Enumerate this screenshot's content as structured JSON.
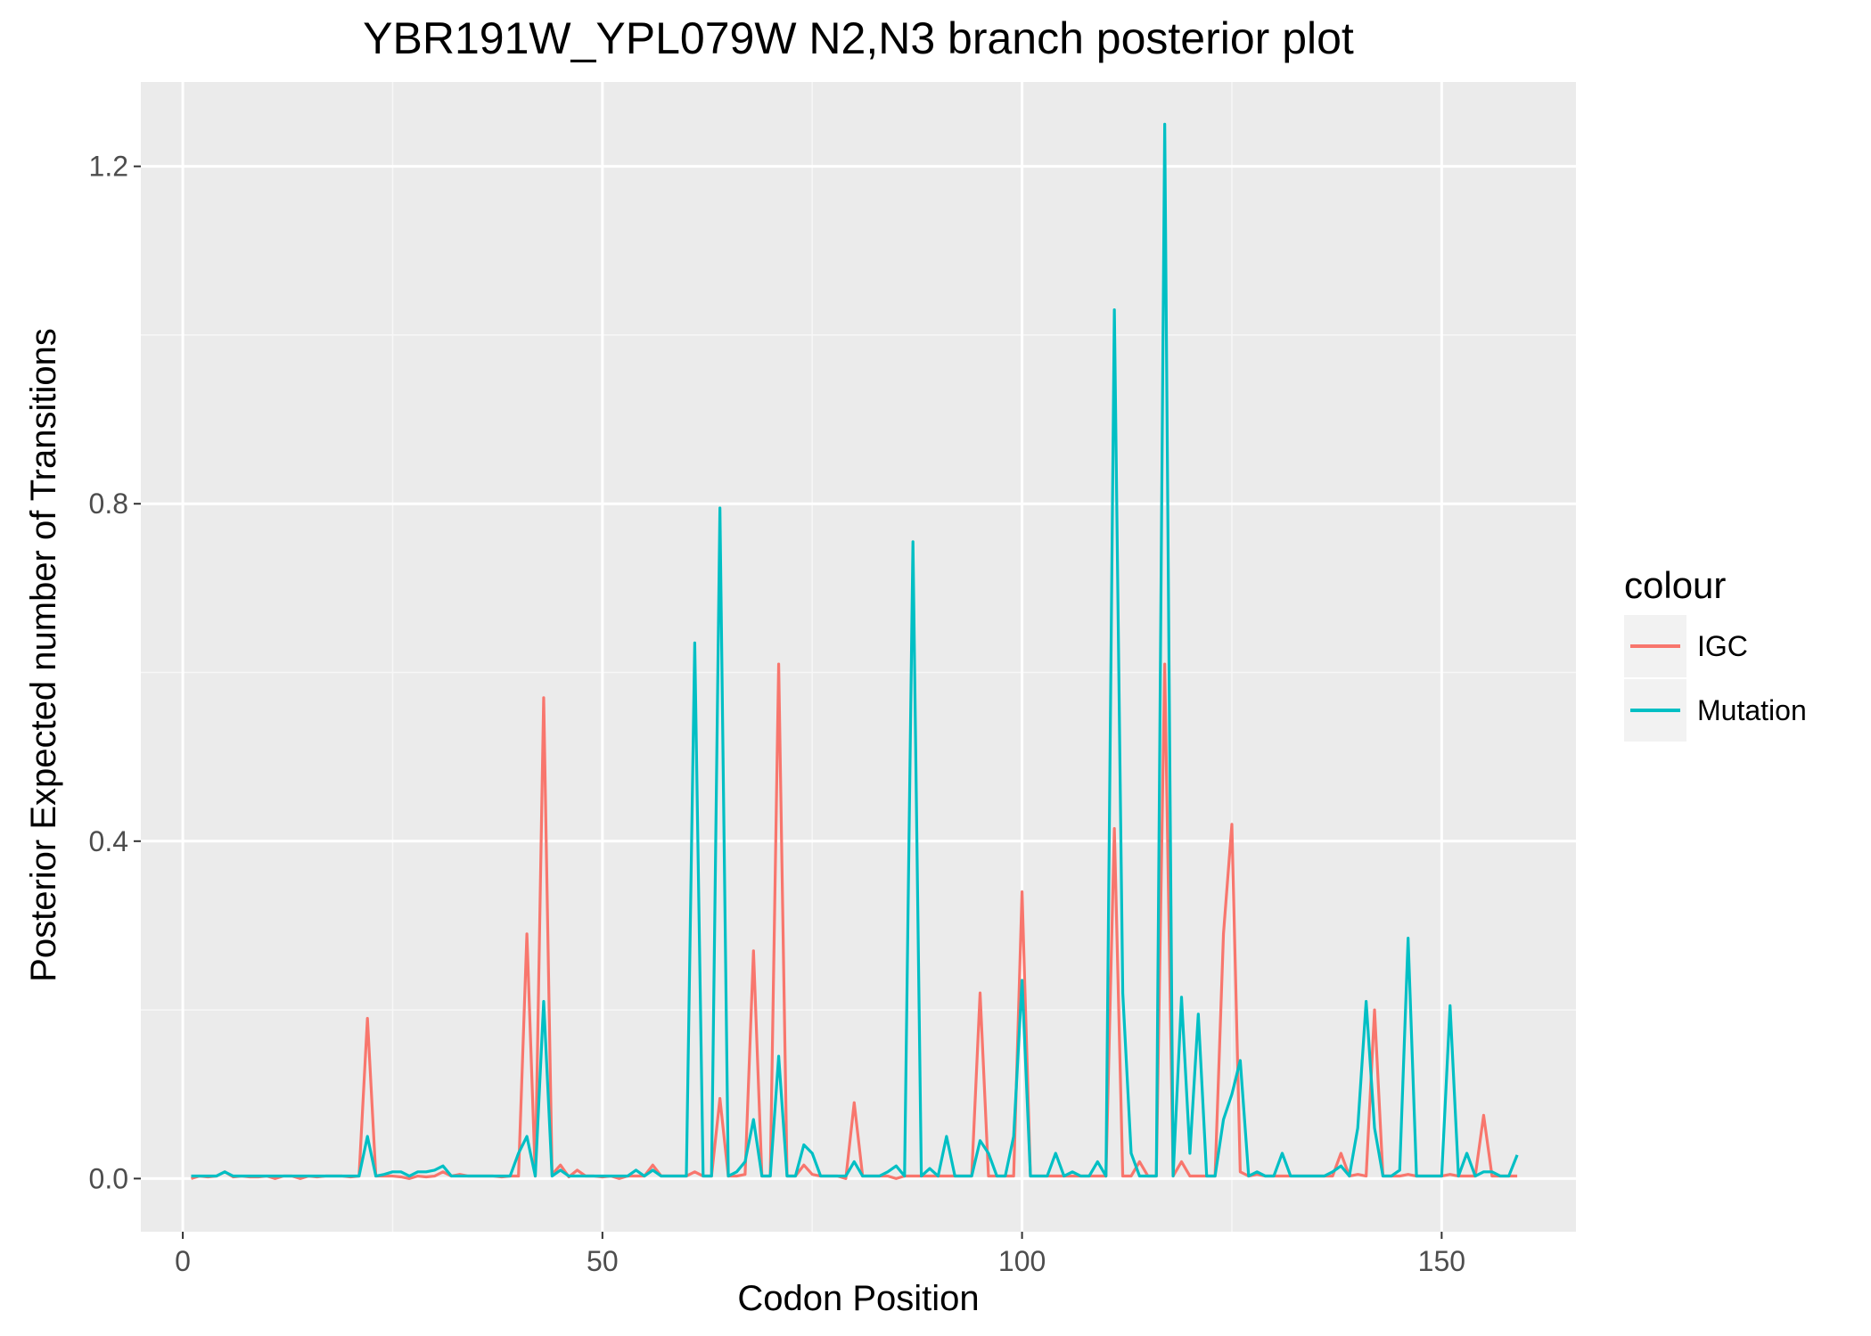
{
  "chart_data": {
    "type": "line",
    "title": "YBR191W_YPL079W N2,N3 branch posterior plot",
    "xlabel": "Codon Position",
    "ylabel": "Posterior Expected number of Transitions",
    "xlim": [
      -5,
      166
    ],
    "ylim": [
      -0.063,
      1.3
    ],
    "x_ticks": [
      0,
      50,
      100,
      150
    ],
    "x_tick_labels": [
      "0",
      "50",
      "100",
      "150"
    ],
    "y_ticks": [
      0.0,
      0.4,
      0.8,
      1.2
    ],
    "y_tick_labels": [
      "0.0",
      "0.4",
      "0.8",
      "1.2"
    ],
    "grid": true,
    "legend": {
      "title": "colour",
      "position": "right"
    },
    "series": [
      {
        "name": "IGC",
        "color": "#F8766D",
        "points": [
          [
            1,
            0.0
          ],
          [
            2,
            0.003
          ],
          [
            3,
            0.002
          ],
          [
            4,
            0.003
          ],
          [
            5,
            0.008
          ],
          [
            6,
            0.002
          ],
          [
            7,
            0.003
          ],
          [
            8,
            0.002
          ],
          [
            9,
            0.002
          ],
          [
            10,
            0.003
          ],
          [
            11,
            0.0
          ],
          [
            12,
            0.003
          ],
          [
            13,
            0.003
          ],
          [
            14,
            0.0
          ],
          [
            15,
            0.003
          ],
          [
            16,
            0.002
          ],
          [
            17,
            0.003
          ],
          [
            18,
            0.003
          ],
          [
            19,
            0.003
          ],
          [
            20,
            0.002
          ],
          [
            21,
            0.003
          ],
          [
            22,
            0.19
          ],
          [
            23,
            0.003
          ],
          [
            24,
            0.003
          ],
          [
            25,
            0.003
          ],
          [
            26,
            0.002
          ],
          [
            27,
            0.0
          ],
          [
            28,
            0.003
          ],
          [
            29,
            0.002
          ],
          [
            30,
            0.003
          ],
          [
            31,
            0.008
          ],
          [
            32,
            0.003
          ],
          [
            33,
            0.005
          ],
          [
            34,
            0.003
          ],
          [
            35,
            0.003
          ],
          [
            36,
            0.003
          ],
          [
            37,
            0.003
          ],
          [
            38,
            0.002
          ],
          [
            39,
            0.003
          ],
          [
            40,
            0.003
          ],
          [
            41,
            0.29
          ],
          [
            42,
            0.003
          ],
          [
            43,
            0.57
          ],
          [
            44,
            0.005
          ],
          [
            45,
            0.016
          ],
          [
            46,
            0.002
          ],
          [
            47,
            0.01
          ],
          [
            48,
            0.003
          ],
          [
            49,
            0.003
          ],
          [
            50,
            0.002
          ],
          [
            51,
            0.003
          ],
          [
            52,
            0.0
          ],
          [
            53,
            0.003
          ],
          [
            54,
            0.003
          ],
          [
            55,
            0.003
          ],
          [
            56,
            0.016
          ],
          [
            57,
            0.003
          ],
          [
            58,
            0.003
          ],
          [
            59,
            0.003
          ],
          [
            60,
            0.003
          ],
          [
            61,
            0.008
          ],
          [
            62,
            0.003
          ],
          [
            63,
            0.003
          ],
          [
            64,
            0.095
          ],
          [
            65,
            0.003
          ],
          [
            66,
            0.003
          ],
          [
            67,
            0.005
          ],
          [
            68,
            0.27
          ],
          [
            69,
            0.003
          ],
          [
            70,
            0.003
          ],
          [
            71,
            0.61
          ],
          [
            72,
            0.003
          ],
          [
            73,
            0.003
          ],
          [
            74,
            0.016
          ],
          [
            75,
            0.005
          ],
          [
            76,
            0.003
          ],
          [
            77,
            0.003
          ],
          [
            78,
            0.003
          ],
          [
            79,
            0.0
          ],
          [
            80,
            0.09
          ],
          [
            81,
            0.003
          ],
          [
            82,
            0.003
          ],
          [
            83,
            0.003
          ],
          [
            84,
            0.003
          ],
          [
            85,
            0.0
          ],
          [
            86,
            0.003
          ],
          [
            87,
            0.003
          ],
          [
            88,
            0.003
          ],
          [
            89,
            0.003
          ],
          [
            90,
            0.003
          ],
          [
            91,
            0.003
          ],
          [
            92,
            0.003
          ],
          [
            93,
            0.003
          ],
          [
            94,
            0.003
          ],
          [
            95,
            0.22
          ],
          [
            96,
            0.003
          ],
          [
            97,
            0.003
          ],
          [
            98,
            0.003
          ],
          [
            99,
            0.003
          ],
          [
            100,
            0.34
          ],
          [
            101,
            0.003
          ],
          [
            102,
            0.003
          ],
          [
            103,
            0.003
          ],
          [
            104,
            0.003
          ],
          [
            105,
            0.003
          ],
          [
            106,
            0.003
          ],
          [
            107,
            0.003
          ],
          [
            108,
            0.003
          ],
          [
            109,
            0.003
          ],
          [
            110,
            0.003
          ],
          [
            111,
            0.415
          ],
          [
            112,
            0.003
          ],
          [
            113,
            0.003
          ],
          [
            114,
            0.02
          ],
          [
            115,
            0.003
          ],
          [
            116,
            0.003
          ],
          [
            117,
            0.61
          ],
          [
            118,
            0.003
          ],
          [
            119,
            0.02
          ],
          [
            120,
            0.003
          ],
          [
            121,
            0.003
          ],
          [
            122,
            0.003
          ],
          [
            123,
            0.003
          ],
          [
            124,
            0.29
          ],
          [
            125,
            0.42
          ],
          [
            126,
            0.008
          ],
          [
            127,
            0.003
          ],
          [
            128,
            0.005
          ],
          [
            129,
            0.003
          ],
          [
            130,
            0.003
          ],
          [
            131,
            0.003
          ],
          [
            132,
            0.003
          ],
          [
            133,
            0.003
          ],
          [
            134,
            0.003
          ],
          [
            135,
            0.003
          ],
          [
            136,
            0.003
          ],
          [
            137,
            0.003
          ],
          [
            138,
            0.03
          ],
          [
            139,
            0.003
          ],
          [
            140,
            0.005
          ],
          [
            141,
            0.003
          ],
          [
            142,
            0.2
          ],
          [
            143,
            0.003
          ],
          [
            144,
            0.003
          ],
          [
            145,
            0.003
          ],
          [
            146,
            0.005
          ],
          [
            147,
            0.003
          ],
          [
            148,
            0.003
          ],
          [
            149,
            0.003
          ],
          [
            150,
            0.003
          ],
          [
            151,
            0.005
          ],
          [
            152,
            0.003
          ],
          [
            153,
            0.003
          ],
          [
            154,
            0.003
          ],
          [
            155,
            0.075
          ],
          [
            156,
            0.003
          ],
          [
            157,
            0.003
          ],
          [
            158,
            0.003
          ],
          [
            159,
            0.003
          ]
        ]
      },
      {
        "name": "Mutation",
        "color": "#00BFC4",
        "points": [
          [
            1,
            0.003
          ],
          [
            2,
            0.003
          ],
          [
            3,
            0.003
          ],
          [
            4,
            0.003
          ],
          [
            5,
            0.008
          ],
          [
            6,
            0.003
          ],
          [
            7,
            0.003
          ],
          [
            8,
            0.003
          ],
          [
            9,
            0.003
          ],
          [
            10,
            0.003
          ],
          [
            11,
            0.003
          ],
          [
            12,
            0.003
          ],
          [
            13,
            0.003
          ],
          [
            14,
            0.003
          ],
          [
            15,
            0.003
          ],
          [
            16,
            0.003
          ],
          [
            17,
            0.003
          ],
          [
            18,
            0.003
          ],
          [
            19,
            0.003
          ],
          [
            20,
            0.003
          ],
          [
            21,
            0.003
          ],
          [
            22,
            0.05
          ],
          [
            23,
            0.003
          ],
          [
            24,
            0.005
          ],
          [
            25,
            0.008
          ],
          [
            26,
            0.008
          ],
          [
            27,
            0.003
          ],
          [
            28,
            0.008
          ],
          [
            29,
            0.008
          ],
          [
            30,
            0.01
          ],
          [
            31,
            0.015
          ],
          [
            32,
            0.003
          ],
          [
            33,
            0.003
          ],
          [
            34,
            0.003
          ],
          [
            35,
            0.003
          ],
          [
            36,
            0.003
          ],
          [
            37,
            0.003
          ],
          [
            38,
            0.003
          ],
          [
            39,
            0.003
          ],
          [
            40,
            0.03
          ],
          [
            41,
            0.05
          ],
          [
            42,
            0.003
          ],
          [
            43,
            0.21
          ],
          [
            44,
            0.003
          ],
          [
            45,
            0.01
          ],
          [
            46,
            0.003
          ],
          [
            47,
            0.003
          ],
          [
            48,
            0.003
          ],
          [
            49,
            0.003
          ],
          [
            50,
            0.003
          ],
          [
            51,
            0.003
          ],
          [
            52,
            0.003
          ],
          [
            53,
            0.003
          ],
          [
            54,
            0.01
          ],
          [
            55,
            0.003
          ],
          [
            56,
            0.01
          ],
          [
            57,
            0.003
          ],
          [
            58,
            0.003
          ],
          [
            59,
            0.003
          ],
          [
            60,
            0.003
          ],
          [
            61,
            0.635
          ],
          [
            62,
            0.003
          ],
          [
            63,
            0.003
          ],
          [
            64,
            0.795
          ],
          [
            65,
            0.003
          ],
          [
            66,
            0.008
          ],
          [
            67,
            0.02
          ],
          [
            68,
            0.07
          ],
          [
            69,
            0.003
          ],
          [
            70,
            0.003
          ],
          [
            71,
            0.145
          ],
          [
            72,
            0.003
          ],
          [
            73,
            0.003
          ],
          [
            74,
            0.04
          ],
          [
            75,
            0.03
          ],
          [
            76,
            0.003
          ],
          [
            77,
            0.003
          ],
          [
            78,
            0.003
          ],
          [
            79,
            0.003
          ],
          [
            80,
            0.02
          ],
          [
            81,
            0.003
          ],
          [
            82,
            0.003
          ],
          [
            83,
            0.003
          ],
          [
            84,
            0.008
          ],
          [
            85,
            0.015
          ],
          [
            86,
            0.003
          ],
          [
            87,
            0.755
          ],
          [
            88,
            0.003
          ],
          [
            89,
            0.012
          ],
          [
            90,
            0.003
          ],
          [
            91,
            0.05
          ],
          [
            92,
            0.003
          ],
          [
            93,
            0.003
          ],
          [
            94,
            0.003
          ],
          [
            95,
            0.045
          ],
          [
            96,
            0.03
          ],
          [
            97,
            0.003
          ],
          [
            98,
            0.003
          ],
          [
            99,
            0.05
          ],
          [
            100,
            0.235
          ],
          [
            101,
            0.003
          ],
          [
            102,
            0.003
          ],
          [
            103,
            0.003
          ],
          [
            104,
            0.03
          ],
          [
            105,
            0.003
          ],
          [
            106,
            0.008
          ],
          [
            107,
            0.003
          ],
          [
            108,
            0.003
          ],
          [
            109,
            0.02
          ],
          [
            110,
            0.003
          ],
          [
            111,
            1.03
          ],
          [
            112,
            0.22
          ],
          [
            113,
            0.03
          ],
          [
            114,
            0.003
          ],
          [
            115,
            0.003
          ],
          [
            116,
            0.003
          ],
          [
            117,
            1.25
          ],
          [
            118,
            0.003
          ],
          [
            119,
            0.215
          ],
          [
            120,
            0.03
          ],
          [
            121,
            0.195
          ],
          [
            122,
            0.003
          ],
          [
            123,
            0.003
          ],
          [
            124,
            0.07
          ],
          [
            125,
            0.1
          ],
          [
            126,
            0.14
          ],
          [
            127,
            0.003
          ],
          [
            128,
            0.008
          ],
          [
            129,
            0.003
          ],
          [
            130,
            0.003
          ],
          [
            131,
            0.03
          ],
          [
            132,
            0.003
          ],
          [
            133,
            0.003
          ],
          [
            134,
            0.003
          ],
          [
            135,
            0.003
          ],
          [
            136,
            0.003
          ],
          [
            137,
            0.008
          ],
          [
            138,
            0.015
          ],
          [
            139,
            0.003
          ],
          [
            140,
            0.06
          ],
          [
            141,
            0.21
          ],
          [
            142,
            0.06
          ],
          [
            143,
            0.003
          ],
          [
            144,
            0.003
          ],
          [
            145,
            0.01
          ],
          [
            146,
            0.285
          ],
          [
            147,
            0.003
          ],
          [
            148,
            0.003
          ],
          [
            149,
            0.003
          ],
          [
            150,
            0.003
          ],
          [
            151,
            0.205
          ],
          [
            152,
            0.003
          ],
          [
            153,
            0.03
          ],
          [
            154,
            0.003
          ],
          [
            155,
            0.008
          ],
          [
            156,
            0.008
          ],
          [
            157,
            0.003
          ],
          [
            158,
            0.003
          ],
          [
            159,
            0.028
          ]
        ]
      }
    ]
  }
}
